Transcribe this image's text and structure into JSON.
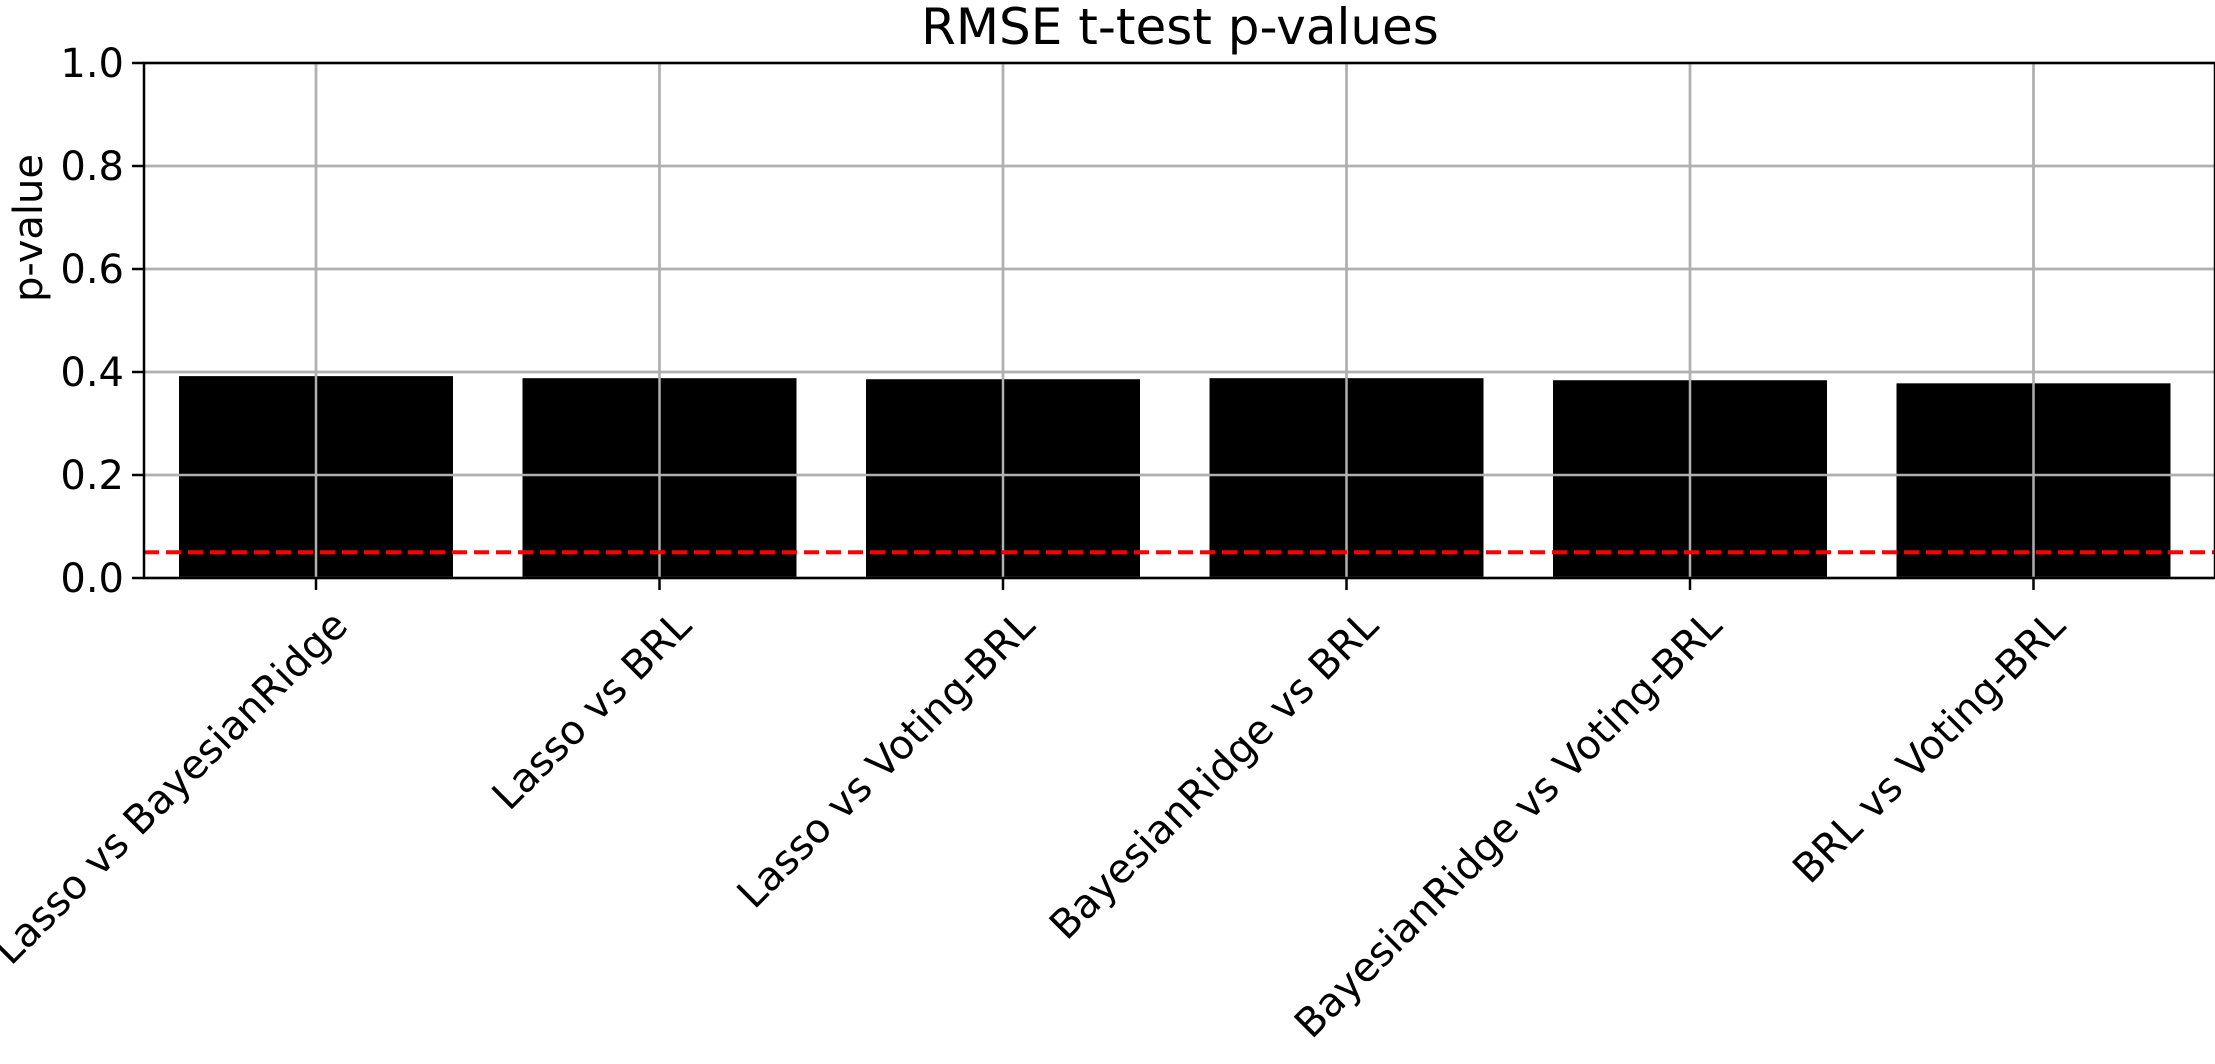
{
  "chart_data": {
    "type": "bar",
    "title": "RMSE t-test p-values",
    "xlabel": "",
    "ylabel": "p-value",
    "ylim": [
      0,
      1.0
    ],
    "yticks": [
      {
        "value": 0.0,
        "label": "0.0"
      },
      {
        "value": 0.2,
        "label": "0.2"
      },
      {
        "value": 0.4,
        "label": "0.4"
      },
      {
        "value": 0.6,
        "label": "0.6"
      },
      {
        "value": 0.8,
        "label": "0.8"
      },
      {
        "value": 1.0,
        "label": "1.0"
      }
    ],
    "categories": [
      "Lasso vs BayesianRidge",
      "Lasso vs BRL",
      "Lasso vs Voting-BRL",
      "BayesianRidge vs BRL",
      "BayesianRidge vs Voting-BRL",
      "BRL vs Voting-BRL"
    ],
    "values": [
      0.392,
      0.388,
      0.386,
      0.388,
      0.384,
      0.378
    ],
    "threshold": 0.05,
    "grid": true,
    "x_tick_rotation": 45,
    "colors": {
      "bars": "#000000",
      "threshold_line": "#ff0000",
      "grid": "#b0b0b0",
      "axes": "#000000"
    }
  }
}
